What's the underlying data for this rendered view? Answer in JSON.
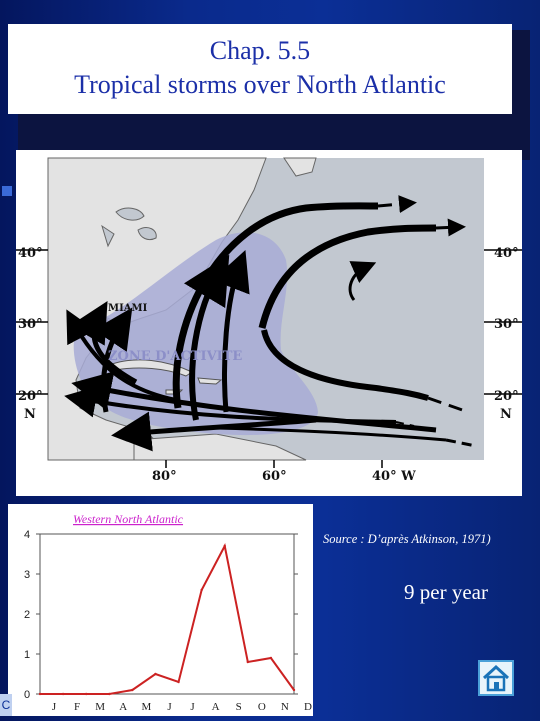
{
  "title": {
    "line1": "Chap. 5.5",
    "line2": "Tropical storms over North Atlantic"
  },
  "map": {
    "lat_left": [
      "40°",
      "30°",
      "20°",
      "N"
    ],
    "lat_right": [
      "40°",
      "30°",
      "20°",
      "N"
    ],
    "lon_bottom": [
      "80°",
      "60°",
      "40° W"
    ],
    "city": "MIAMI",
    "zone_label": "ZONE D'ACTIVITE"
  },
  "source": "Source : D’après Atkinson, 1971)",
  "rate": "9 per year",
  "chart_data": {
    "type": "line",
    "title": "Western North Atlantic",
    "categories": [
      "J",
      "F",
      "M",
      "A",
      "M",
      "J",
      "J",
      "A",
      "S",
      "O",
      "N",
      "D"
    ],
    "values": [
      0,
      0,
      0,
      0,
      0.1,
      0.5,
      0.3,
      2.6,
      3.7,
      0.8,
      0.9,
      0.1
    ],
    "ylim": [
      0,
      4
    ],
    "yticks": [
      "0",
      "1",
      "2",
      "3",
      "4"
    ],
    "series_color": "#cc2222",
    "title_color": "#cc22cc"
  },
  "icons": {
    "home": "home-icon",
    "corner": "slide-icon"
  },
  "colors": {
    "background": "#0b2f96",
    "title_text": "#1b2fa8",
    "zone_fill": "#a8acd6"
  }
}
